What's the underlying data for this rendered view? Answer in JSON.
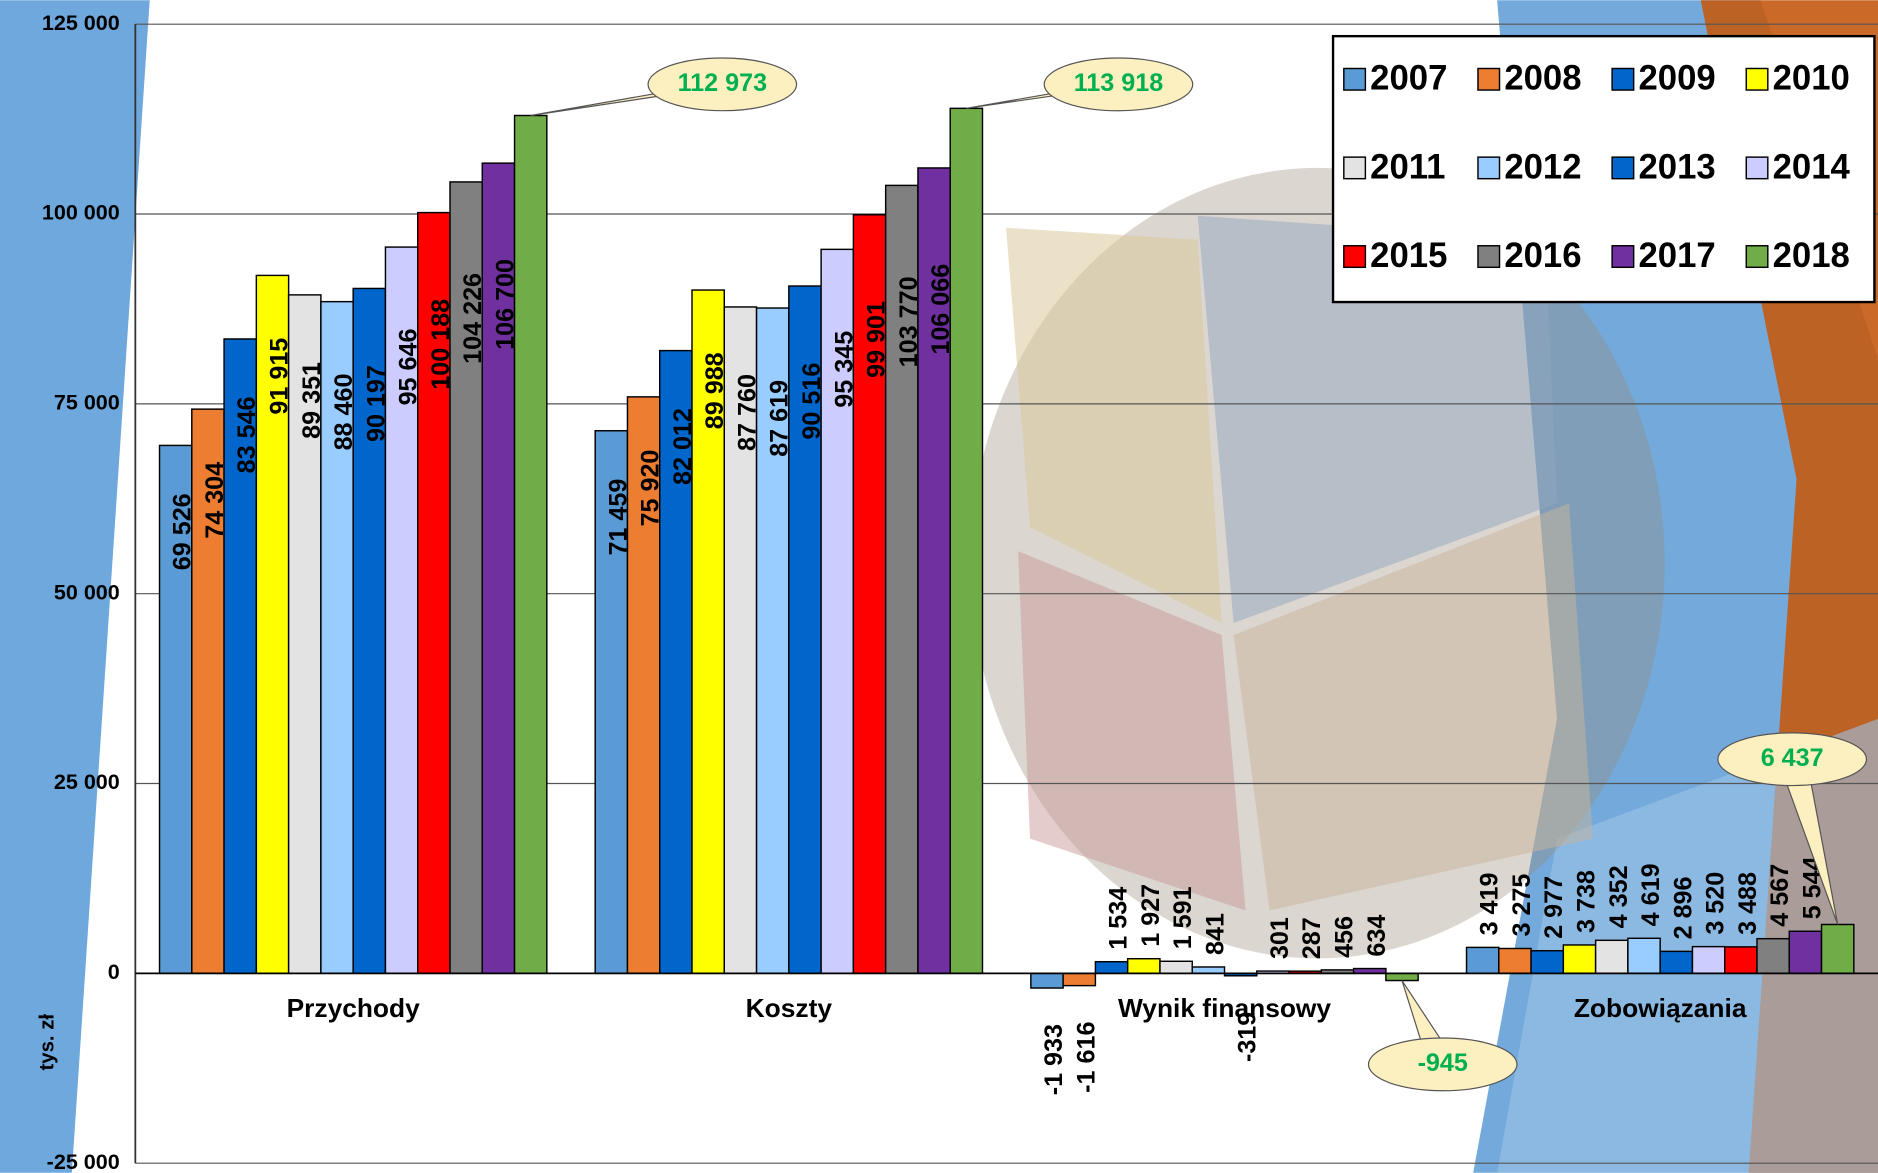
{
  "chart_data": {
    "type": "bar",
    "categories": [
      "Przychody",
      "Koszty",
      "Wynik finansowy",
      "Zobowiązania"
    ],
    "y_label": "tys. zł",
    "ylim": [
      -25000,
      125000
    ],
    "yticks": [
      {
        "value": -25000,
        "label": "-25 000"
      },
      0,
      {
        "value": 25000,
        "label": "25 000"
      },
      {
        "value": 50000,
        "label": "50 000"
      },
      {
        "value": 75000,
        "label": "75 000"
      },
      {
        "value": 100000,
        "label": "100 000"
      },
      {
        "value": 125000,
        "label": "125 000"
      }
    ],
    "grid": true,
    "legend": "top-right",
    "series": [
      {
        "name": "2007",
        "color": "#5b9bd5",
        "values": [
          69526,
          71459,
          -1933,
          3419
        ],
        "value_labels": [
          "69 526",
          "71 459",
          "-1 933",
          "3 419"
        ]
      },
      {
        "name": "2008",
        "color": "#ed7d31",
        "values": [
          74304,
          75920,
          -1616,
          3275
        ],
        "value_labels": [
          "74 304",
          "75 920",
          "-1 616",
          "3 275"
        ]
      },
      {
        "name": "2009",
        "color": "#0066cc",
        "values": [
          83546,
          82012,
          1534,
          2977
        ],
        "value_labels": [
          "83 546",
          "82 012",
          "1 534",
          "2 977"
        ]
      },
      {
        "name": "2010",
        "color": "#ffff00",
        "values": [
          91915,
          89988,
          1927,
          3738
        ],
        "value_labels": [
          "91 915",
          "89 988",
          "1 927",
          "3 738"
        ]
      },
      {
        "name": "2011",
        "color": "#e3e3e3",
        "values": [
          89351,
          87760,
          1591,
          4352
        ],
        "value_labels": [
          "89 351",
          "87 760",
          "1 591",
          "4 352"
        ]
      },
      {
        "name": "2012",
        "color": "#99ccff",
        "values": [
          88460,
          87619,
          841,
          4619
        ],
        "value_labels": [
          "88 460",
          "87 619",
          "841",
          "4 619"
        ]
      },
      {
        "name": "2013",
        "color": "#0066cc",
        "values": [
          90197,
          90516,
          -319,
          2896
        ],
        "value_labels": [
          "90 197",
          "90 516",
          "-319",
          "2 896"
        ]
      },
      {
        "name": "2014",
        "color": "#ccccff",
        "values": [
          95646,
          95345,
          301,
          3520
        ],
        "value_labels": [
          "95 646",
          "95 345",
          "301",
          "3 520"
        ]
      },
      {
        "name": "2015",
        "color": "#ff0000",
        "values": [
          100188,
          99901,
          287,
          3488
        ],
        "value_labels": [
          "100 188",
          "99 901",
          "287",
          "3 488"
        ]
      },
      {
        "name": "2016",
        "color": "#808080",
        "values": [
          104226,
          103770,
          456,
          4567
        ],
        "value_labels": [
          "104 226",
          "103 770",
          "456",
          "4 567"
        ]
      },
      {
        "name": "2017",
        "color": "#7030a0",
        "values": [
          106700,
          106066,
          634,
          5544
        ],
        "value_labels": [
          "106 700",
          "106 066",
          "634",
          "5 544"
        ]
      },
      {
        "name": "2018",
        "color": "#70ad47",
        "values": [
          112973,
          113918,
          -945,
          6437
        ],
        "value_labels": [
          "112 973",
          "113 918",
          "-945",
          "6 437"
        ]
      }
    ]
  }
}
